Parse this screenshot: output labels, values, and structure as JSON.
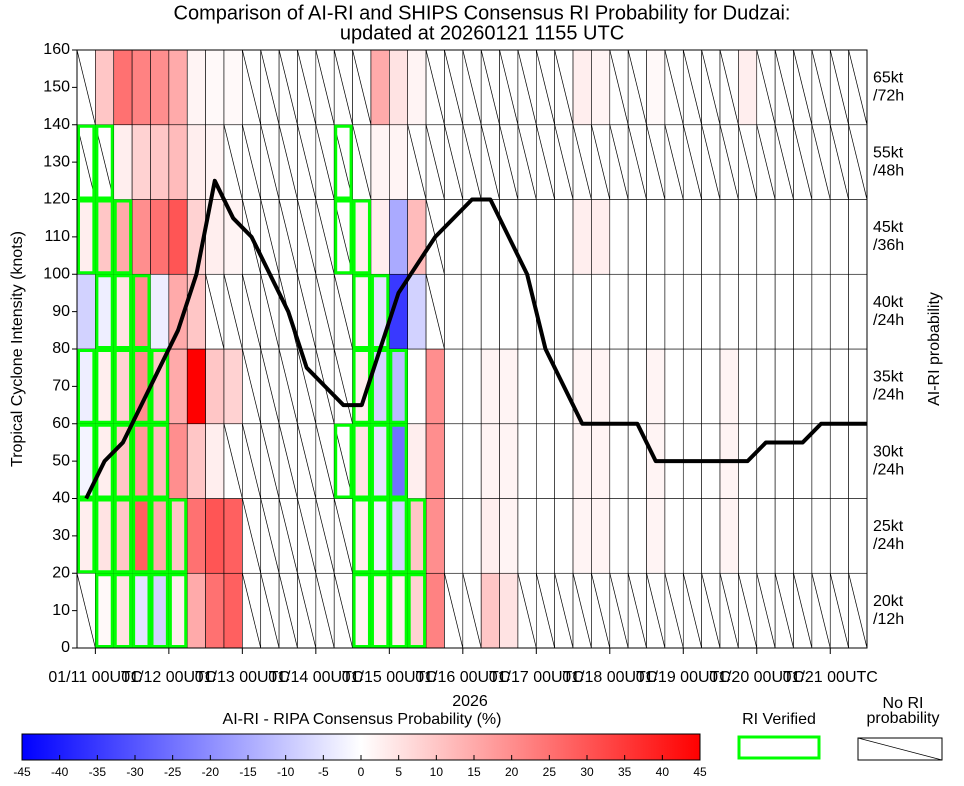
{
  "chart_data": {
    "type": "heatmap",
    "title": [
      "Comparison of AI-RI and SHIPS Consensus RI Probability for Dudzai:",
      "updated at 20260121 1155 UTC"
    ],
    "ylabel": "Tropical Cyclone Intensity (knots)",
    "y2label": "AI-RI probability",
    "xlabel": "2026",
    "xlim": [
      0,
      258
    ],
    "xticks": [
      {
        "value": 6,
        "label": "01/11 00UTC"
      },
      {
        "value": 30,
        "label": "01/12 00UTC"
      },
      {
        "value": 54,
        "label": "01/13 00UTC"
      },
      {
        "value": 78,
        "label": "01/14 00UTC"
      },
      {
        "value": 102,
        "label": "01/15 00UTC"
      },
      {
        "value": 126,
        "label": "01/16 00UTC"
      },
      {
        "value": 150,
        "label": "01/17 00UTC"
      },
      {
        "value": 174,
        "label": "01/18 00UTC"
      },
      {
        "value": 198,
        "label": "01/19 00UTC"
      },
      {
        "value": 222,
        "label": "01/20 00UTC"
      },
      {
        "value": 246,
        "label": "01/21 00UTC"
      }
    ],
    "ylim": [
      0,
      160
    ],
    "yticks": [
      0,
      10,
      20,
      30,
      40,
      50,
      60,
      70,
      80,
      90,
      100,
      110,
      120,
      130,
      140,
      150,
      160
    ],
    "x": [
      0,
      6,
      12,
      18,
      24,
      30,
      36,
      42,
      48,
      54,
      60,
      66,
      72,
      78,
      84,
      90,
      96,
      102,
      108,
      114,
      120,
      126,
      132,
      138,
      144,
      150,
      156,
      162,
      168,
      174,
      180,
      186,
      192,
      198,
      204,
      210,
      216,
      222,
      228,
      234,
      240,
      246,
      252
    ],
    "rows": [
      {
        "label": [
          "20kt",
          "/12h"
        ],
        "bounds": [
          0,
          20
        ],
        "values": [
          null,
          1,
          5,
          -5,
          -8,
          3,
          15,
          25,
          28,
          null,
          null,
          null,
          null,
          null,
          null,
          2,
          3,
          3,
          8,
          22,
          null,
          null,
          10,
          5,
          null,
          null,
          null,
          null,
          null,
          null,
          null,
          null,
          null,
          null,
          null,
          null,
          null,
          null,
          null,
          null,
          null,
          null,
          null
        ],
        "verified": [
          6,
          12,
          18,
          24,
          30,
          90,
          96,
          102,
          108
        ]
      },
      {
        "label": [
          "25kt",
          "/24h"
        ],
        "bounds": [
          20,
          40
        ],
        "values": [
          3,
          5,
          10,
          28,
          15,
          10,
          25,
          30,
          28,
          null,
          null,
          null,
          null,
          null,
          null,
          3,
          -3,
          -8,
          10,
          20,
          0,
          0,
          3,
          2,
          0,
          0,
          0,
          2,
          2,
          0,
          0,
          2,
          0,
          0,
          0,
          2,
          0,
          0,
          0,
          0,
          0,
          0,
          0
        ],
        "verified": [
          0,
          6,
          12,
          18,
          24,
          30,
          90,
          96,
          102,
          108
        ]
      },
      {
        "label": [
          "30kt",
          "/24h"
        ],
        "bounds": [
          40,
          60
        ],
        "values": [
          -2,
          3,
          10,
          18,
          12,
          20,
          10,
          3,
          null,
          null,
          null,
          null,
          null,
          null,
          null,
          5,
          -5,
          -25,
          3,
          20,
          0,
          0,
          2,
          2,
          0,
          0,
          0,
          2,
          2,
          0,
          0,
          2,
          0,
          0,
          0,
          2,
          0,
          0,
          0,
          0,
          0,
          0,
          0
        ],
        "verified": [
          0,
          6,
          12,
          18,
          24,
          84,
          90,
          96,
          102
        ]
      },
      {
        "label": [
          "35kt",
          "/24h"
        ],
        "bounds": [
          60,
          80
        ],
        "values": [
          -3,
          3,
          8,
          20,
          10,
          15,
          45,
          10,
          8,
          null,
          null,
          null,
          null,
          null,
          null,
          3,
          -8,
          -12,
          0,
          20,
          0,
          0,
          2,
          2,
          0,
          0,
          0,
          2,
          2,
          0,
          0,
          2,
          0,
          0,
          0,
          2,
          0,
          0,
          0,
          0,
          0,
          0,
          0
        ],
        "verified": [
          0,
          6,
          12,
          18,
          24,
          90,
          96,
          102
        ]
      },
      {
        "label": [
          "40kt",
          "/24h"
        ],
        "bounds": [
          80,
          100
        ],
        "values": [
          -8,
          -3,
          5,
          20,
          -3,
          15,
          10,
          null,
          null,
          null,
          null,
          null,
          null,
          null,
          null,
          2,
          -5,
          -35,
          -8,
          null,
          0,
          0,
          0,
          0,
          0,
          0,
          0,
          0,
          0,
          0,
          0,
          0,
          0,
          0,
          0,
          0,
          0,
          0,
          0,
          0,
          0,
          0,
          0
        ],
        "verified": [
          6,
          12,
          18,
          90,
          96
        ]
      },
      {
        "label": [
          "45kt",
          "/36h"
        ],
        "bounds": [
          100,
          120
        ],
        "values": [
          3,
          10,
          15,
          20,
          25,
          30,
          8,
          3,
          2,
          null,
          null,
          null,
          null,
          null,
          null,
          3,
          3,
          -15,
          12,
          null,
          0,
          0,
          0,
          0,
          0,
          0,
          0,
          3,
          3,
          0,
          0,
          0,
          0,
          0,
          0,
          0,
          0,
          0,
          0,
          0,
          0,
          0,
          0
        ],
        "verified": [
          0,
          6,
          12,
          84,
          90
        ]
      },
      {
        "label": [
          "55kt",
          "/48h"
        ],
        "bounds": [
          120,
          140
        ],
        "values": [
          null,
          null,
          3,
          8,
          10,
          12,
          3,
          2,
          null,
          null,
          null,
          null,
          null,
          null,
          null,
          null,
          2,
          2,
          null,
          null,
          null,
          null,
          null,
          null,
          null,
          null,
          null,
          null,
          null,
          null,
          null,
          null,
          null,
          null,
          null,
          null,
          null,
          null,
          null,
          null,
          null,
          null,
          null
        ],
        "verified": [
          0,
          6,
          84
        ]
      },
      {
        "label": [
          "65kt",
          "/72h"
        ],
        "bounds": [
          140,
          160
        ],
        "values": [
          null,
          10,
          25,
          22,
          20,
          15,
          2,
          1,
          1,
          null,
          null,
          null,
          null,
          null,
          null,
          null,
          15,
          5,
          2,
          null,
          null,
          null,
          null,
          null,
          null,
          null,
          null,
          3,
          2,
          null,
          null,
          1,
          null,
          null,
          null,
          null,
          3,
          null,
          null,
          null,
          null,
          null,
          null
        ],
        "verified": []
      }
    ],
    "line": {
      "color": "#000000",
      "x": [
        3,
        9,
        15,
        33,
        39,
        45,
        51,
        57,
        63,
        69,
        75,
        81,
        87,
        93,
        99,
        105,
        117,
        129,
        135,
        147,
        153,
        165,
        183,
        189,
        219,
        225,
        237,
        243,
        258
      ],
      "values": [
        40,
        50,
        55,
        85,
        100,
        125,
        115,
        110,
        100,
        90,
        75,
        70,
        65,
        65,
        80,
        95,
        110,
        120,
        120,
        100,
        80,
        60,
        60,
        50,
        50,
        55,
        55,
        60,
        60
      ]
    },
    "colorbar": {
      "label": "AI-RI - RIPA Consensus Probability (%)",
      "lim": [
        -45,
        45
      ],
      "ticks": [
        -45,
        -40,
        -35,
        -30,
        -25,
        -20,
        -15,
        -10,
        -5,
        0,
        5,
        10,
        15,
        20,
        25,
        30,
        35,
        40,
        45
      ],
      "colors": [
        "#0000ff",
        "#ffffff",
        "#ff0000"
      ]
    },
    "legend": {
      "verified": "RI Verified",
      "verified_color": "#00ff00",
      "none": [
        "No RI",
        "probability"
      ]
    }
  }
}
